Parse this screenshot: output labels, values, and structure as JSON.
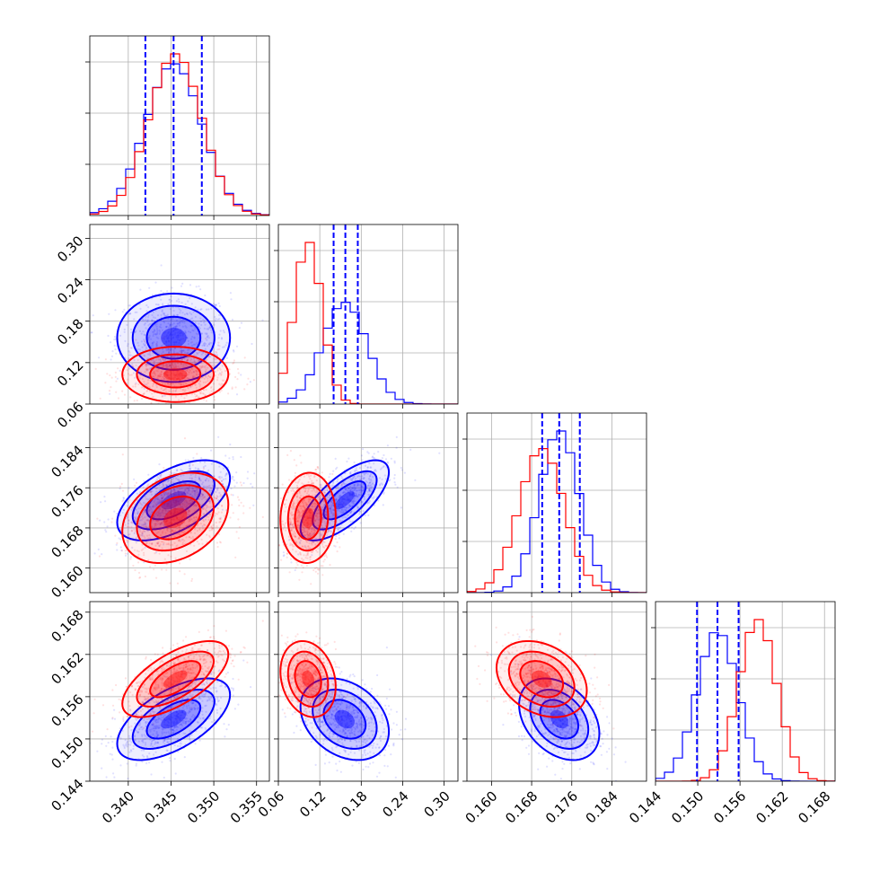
{
  "chart_data": {
    "type": "corner",
    "grid": true,
    "legend": "none",
    "colors": {
      "set_a": "#0000ff",
      "set_b": "#ff0000"
    },
    "params": [
      {
        "range": [
          0.3355,
          0.3565
        ],
        "ticks": [
          0.34,
          0.345,
          0.35,
          0.355
        ],
        "tick_labels": [
          "0.340",
          "0.345",
          "0.350",
          "0.355"
        ]
      },
      {
        "range": [
          0.06,
          0.32
        ],
        "ticks": [
          0.06,
          0.12,
          0.18,
          0.24,
          0.3
        ],
        "tick_labels": [
          "0.06",
          "0.12",
          "0.18",
          "0.24",
          "0.30"
        ]
      },
      {
        "range": [
          0.1551,
          0.1909
        ],
        "ticks": [
          0.16,
          0.168,
          0.176,
          0.184
        ],
        "tick_labels": [
          "0.160",
          "0.168",
          "0.176",
          "0.184"
        ]
      },
      {
        "range": [
          0.144,
          0.1695
        ],
        "ticks": [
          0.144,
          0.15,
          0.156,
          0.162,
          0.168
        ],
        "tick_labels": [
          "0.144",
          "0.150",
          "0.156",
          "0.162",
          "0.168"
        ]
      }
    ],
    "series": [
      {
        "color": "#0000ff",
        "mean": [
          0.3453,
          0.156,
          0.1735,
          0.1528
        ],
        "sd": [
          0.0033,
          0.032,
          0.004,
          0.0029
        ],
        "quantiles": [
          [
            0.342,
            0.3453,
            0.3486
          ],
          [
            0.14,
            0.157,
            0.175
          ],
          [
            0.1701,
            0.1735,
            0.1776
          ],
          [
            0.1499,
            0.1528,
            0.1558
          ]
        ]
      },
      {
        "color": "#ff0000",
        "mean": [
          0.3455,
          0.103,
          0.17,
          0.1585
        ],
        "sd": [
          0.0031,
          0.02,
          0.0045,
          0.0027
        ]
      }
    ],
    "correlations": {
      "set_a": {
        "1-0": 0.0,
        "2-0": 0.55,
        "3-0": 0.6,
        "2-1": 0.7,
        "3-1": -0.3,
        "3-2": -0.35
      },
      "set_b": {
        "1-0": 0.0,
        "2-0": 0.3,
        "3-0": 0.65,
        "2-1": 0.05,
        "3-1": -0.2,
        "3-2": -0.3
      }
    }
  }
}
